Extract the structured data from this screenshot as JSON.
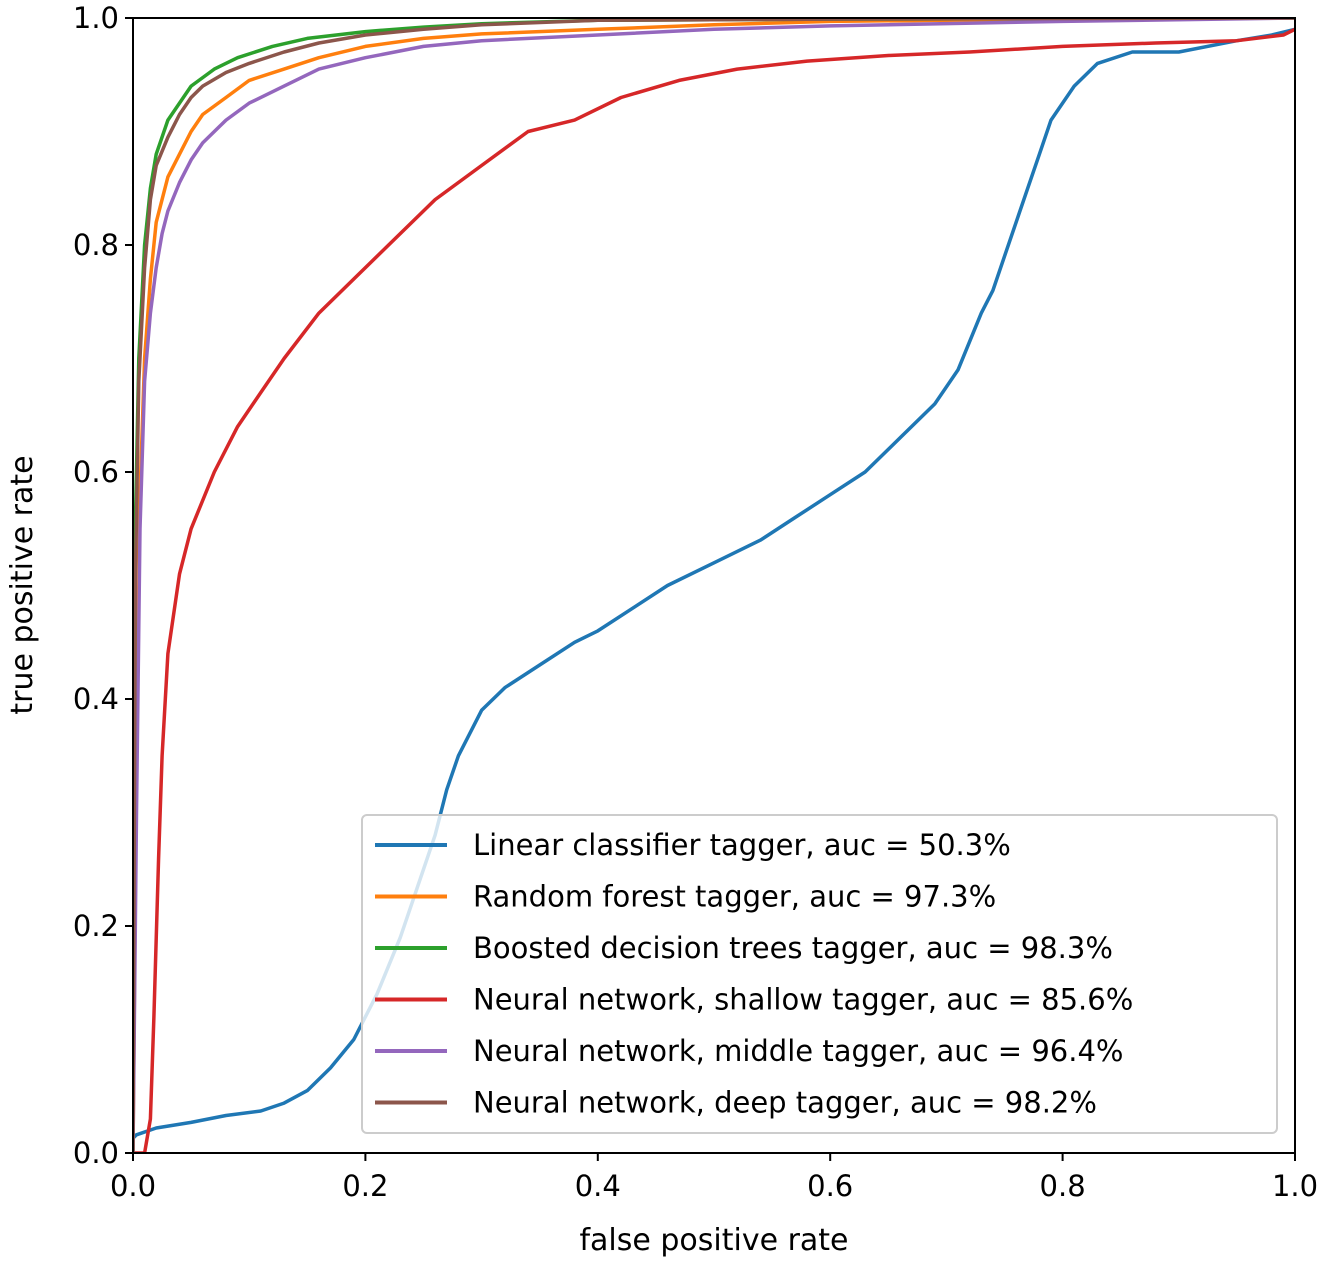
{
  "chart_data": {
    "type": "line",
    "title": "",
    "xlabel": "false positive rate",
    "ylabel": "true positive rate",
    "xlim": [
      0.0,
      1.0
    ],
    "ylim": [
      0.0,
      1.0
    ],
    "xticks": [
      "0.0",
      "0.2",
      "0.4",
      "0.6",
      "0.8",
      "1.0"
    ],
    "yticks": [
      "0.0",
      "0.2",
      "0.4",
      "0.6",
      "0.8",
      "1.0"
    ],
    "grid": false,
    "legend_position": "lower-right",
    "series": [
      {
        "name": "Linear classifier tagger, auc = 50.3%",
        "color": "#1f77b4",
        "x": [
          0.0,
          0.003,
          0.02,
          0.05,
          0.08,
          0.11,
          0.13,
          0.15,
          0.17,
          0.19,
          0.21,
          0.23,
          0.25,
          0.26,
          0.27,
          0.28,
          0.3,
          0.32,
          0.35,
          0.38,
          0.4,
          0.43,
          0.46,
          0.5,
          0.54,
          0.57,
          0.6,
          0.63,
          0.66,
          0.69,
          0.71,
          0.73,
          0.74,
          0.75,
          0.76,
          0.77,
          0.78,
          0.79,
          0.81,
          0.83,
          0.86,
          0.9,
          0.95,
          0.98,
          1.0
        ],
        "y": [
          0.013,
          0.016,
          0.022,
          0.027,
          0.033,
          0.037,
          0.044,
          0.055,
          0.075,
          0.1,
          0.14,
          0.19,
          0.25,
          0.28,
          0.32,
          0.35,
          0.39,
          0.41,
          0.43,
          0.45,
          0.46,
          0.48,
          0.5,
          0.52,
          0.54,
          0.56,
          0.58,
          0.6,
          0.63,
          0.66,
          0.69,
          0.74,
          0.76,
          0.79,
          0.82,
          0.85,
          0.88,
          0.91,
          0.94,
          0.96,
          0.97,
          0.97,
          0.98,
          0.985,
          0.99
        ]
      },
      {
        "name": "Random forest tagger, auc = 97.3%",
        "color": "#ff7f0e",
        "x": [
          0.0,
          0.003,
          0.006,
          0.01,
          0.015,
          0.02,
          0.03,
          0.04,
          0.05,
          0.06,
          0.08,
          0.1,
          0.13,
          0.16,
          0.2,
          0.25,
          0.3,
          0.4,
          0.5,
          0.6,
          0.8,
          1.0
        ],
        "y": [
          0.0,
          0.35,
          0.58,
          0.7,
          0.77,
          0.82,
          0.86,
          0.88,
          0.9,
          0.915,
          0.93,
          0.945,
          0.955,
          0.965,
          0.975,
          0.982,
          0.986,
          0.99,
          0.994,
          0.997,
          0.999,
          1.0
        ]
      },
      {
        "name": "Boosted decision trees tagger, auc = 98.3%",
        "color": "#2ca02c",
        "x": [
          0.0,
          0.002,
          0.005,
          0.01,
          0.015,
          0.02,
          0.03,
          0.04,
          0.05,
          0.07,
          0.09,
          0.12,
          0.15,
          0.2,
          0.25,
          0.3,
          0.4,
          0.6,
          1.0
        ],
        "y": [
          0.0,
          0.55,
          0.7,
          0.8,
          0.85,
          0.88,
          0.91,
          0.925,
          0.94,
          0.955,
          0.965,
          0.975,
          0.982,
          0.988,
          0.992,
          0.995,
          0.998,
          0.999,
          1.0
        ]
      },
      {
        "name": "Neural network, shallow tagger, auc = 85.6%",
        "color": "#d62728",
        "x": [
          0.0,
          0.01,
          0.015,
          0.018,
          0.022,
          0.025,
          0.03,
          0.04,
          0.05,
          0.07,
          0.09,
          0.11,
          0.13,
          0.16,
          0.19,
          0.22,
          0.26,
          0.3,
          0.34,
          0.38,
          0.42,
          0.47,
          0.52,
          0.58,
          0.65,
          0.72,
          0.8,
          0.88,
          0.95,
          0.99,
          1.0
        ],
        "y": [
          0.0,
          0.0,
          0.03,
          0.12,
          0.26,
          0.35,
          0.44,
          0.51,
          0.55,
          0.6,
          0.64,
          0.67,
          0.7,
          0.74,
          0.77,
          0.8,
          0.84,
          0.87,
          0.9,
          0.91,
          0.93,
          0.945,
          0.955,
          0.962,
          0.967,
          0.97,
          0.975,
          0.978,
          0.98,
          0.985,
          0.99
        ]
      },
      {
        "name": "Neural network, middle tagger, auc = 96.4%",
        "color": "#9467bd",
        "x": [
          0.0,
          0.003,
          0.006,
          0.01,
          0.015,
          0.02,
          0.025,
          0.03,
          0.04,
          0.05,
          0.06,
          0.08,
          0.1,
          0.13,
          0.16,
          0.2,
          0.25,
          0.3,
          0.4,
          0.5,
          0.6,
          0.8,
          1.0
        ],
        "y": [
          0.0,
          0.3,
          0.55,
          0.68,
          0.74,
          0.78,
          0.81,
          0.83,
          0.855,
          0.875,
          0.89,
          0.91,
          0.925,
          0.94,
          0.955,
          0.965,
          0.975,
          0.98,
          0.985,
          0.99,
          0.993,
          0.997,
          1.0
        ]
      },
      {
        "name": "Neural network, deep tagger, auc = 98.2%",
        "color": "#8c564b",
        "x": [
          0.0,
          0.002,
          0.005,
          0.01,
          0.015,
          0.02,
          0.03,
          0.04,
          0.05,
          0.06,
          0.08,
          0.1,
          0.13,
          0.16,
          0.2,
          0.25,
          0.3,
          0.4,
          0.6,
          1.0
        ],
        "y": [
          0.0,
          0.5,
          0.68,
          0.78,
          0.84,
          0.87,
          0.895,
          0.915,
          0.93,
          0.94,
          0.952,
          0.96,
          0.97,
          0.978,
          0.985,
          0.99,
          0.994,
          0.998,
          0.999,
          1.0
        ]
      }
    ]
  }
}
